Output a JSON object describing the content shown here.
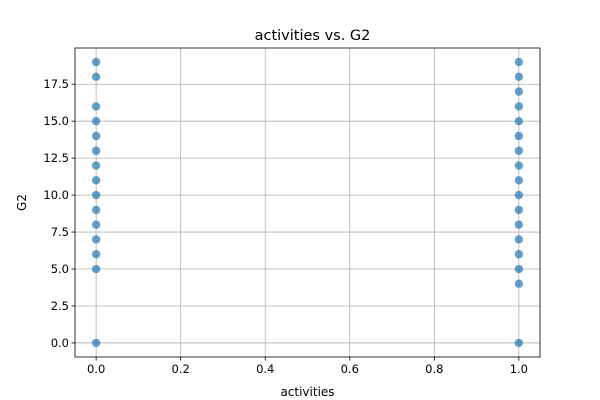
{
  "chart_data": {
    "type": "scatter",
    "title": "activities vs. G2",
    "xlabel": "activities",
    "ylabel": "G2",
    "xlim": [
      -0.05,
      1.05
    ],
    "ylim": [
      -0.95,
      19.95
    ],
    "xticks": [
      0.0,
      0.2,
      0.4,
      0.6,
      0.8,
      1.0
    ],
    "xtick_labels": [
      "0.0",
      "0.2",
      "0.4",
      "0.6",
      "0.8",
      "1.0"
    ],
    "yticks": [
      0.0,
      2.5,
      5.0,
      7.5,
      10.0,
      12.5,
      15.0,
      17.5
    ],
    "ytick_labels": [
      "0.0",
      "2.5",
      "5.0",
      "7.5",
      "10.0",
      "12.5",
      "15.0",
      "17.5"
    ],
    "grid": true,
    "marker_color": "#1f77b4",
    "marker_alpha": 0.7,
    "points": [
      {
        "x": 0,
        "y": 0
      },
      {
        "x": 0,
        "y": 5
      },
      {
        "x": 0,
        "y": 6
      },
      {
        "x": 0,
        "y": 7
      },
      {
        "x": 0,
        "y": 8
      },
      {
        "x": 0,
        "y": 9
      },
      {
        "x": 0,
        "y": 10
      },
      {
        "x": 0,
        "y": 11
      },
      {
        "x": 0,
        "y": 12
      },
      {
        "x": 0,
        "y": 13
      },
      {
        "x": 0,
        "y": 14
      },
      {
        "x": 0,
        "y": 15
      },
      {
        "x": 0,
        "y": 16
      },
      {
        "x": 0,
        "y": 18
      },
      {
        "x": 0,
        "y": 19
      },
      {
        "x": 1,
        "y": 0
      },
      {
        "x": 1,
        "y": 4
      },
      {
        "x": 1,
        "y": 5
      },
      {
        "x": 1,
        "y": 6
      },
      {
        "x": 1,
        "y": 7
      },
      {
        "x": 1,
        "y": 8
      },
      {
        "x": 1,
        "y": 9
      },
      {
        "x": 1,
        "y": 10
      },
      {
        "x": 1,
        "y": 11
      },
      {
        "x": 1,
        "y": 12
      },
      {
        "x": 1,
        "y": 13
      },
      {
        "x": 1,
        "y": 14
      },
      {
        "x": 1,
        "y": 15
      },
      {
        "x": 1,
        "y": 16
      },
      {
        "x": 1,
        "y": 17
      },
      {
        "x": 1,
        "y": 18
      },
      {
        "x": 1,
        "y": 19
      }
    ]
  }
}
